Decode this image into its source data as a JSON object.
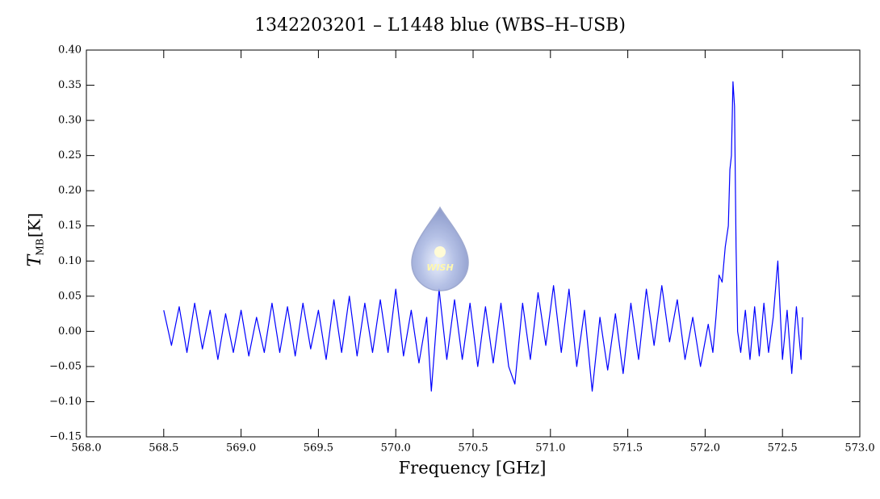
{
  "chart_data": {
    "type": "line",
    "title": "1342203201 – L1448 blue (WBS–H–USB)",
    "x_label": "Frequency [GHz]",
    "y_label": "T",
    "y_label_sub": "MB",
    "y_label_unit": "[K]",
    "watermark": "WISH",
    "color": "#0000ff",
    "x": [
      568.5,
      568.55,
      568.6,
      568.65,
      568.7,
      568.75,
      568.8,
      568.85,
      568.9,
      568.95,
      569.0,
      569.05,
      569.1,
      569.15,
      569.2,
      569.25,
      569.3,
      569.35,
      569.4,
      569.45,
      569.5,
      569.55,
      569.6,
      569.65,
      569.7,
      569.75,
      569.8,
      569.85,
      569.9,
      569.95,
      570.0,
      570.05,
      570.1,
      570.15,
      570.2,
      570.23,
      570.28,
      570.33,
      570.38,
      570.43,
      570.48,
      570.53,
      570.58,
      570.63,
      570.68,
      570.73,
      570.77,
      570.82,
      570.87,
      570.92,
      570.97,
      571.02,
      571.07,
      571.12,
      571.17,
      571.22,
      571.27,
      571.32,
      571.37,
      571.42,
      571.47,
      571.52,
      571.57,
      571.62,
      571.67,
      571.72,
      571.77,
      571.82,
      571.87,
      571.92,
      571.97,
      572.02,
      572.05,
      572.07,
      572.09,
      572.11,
      572.13,
      572.15,
      572.16,
      572.17,
      572.18,
      572.19,
      572.2,
      572.21,
      572.23,
      572.26,
      572.29,
      572.32,
      572.35,
      572.38,
      572.41,
      572.44,
      572.47,
      572.5,
      572.53,
      572.56,
      572.59,
      572.62,
      572.63
    ],
    "values": [
      0.03,
      -0.02,
      0.035,
      -0.03,
      0.04,
      -0.025,
      0.03,
      -0.04,
      0.025,
      -0.03,
      0.03,
      -0.035,
      0.02,
      -0.03,
      0.04,
      -0.03,
      0.035,
      -0.035,
      0.04,
      -0.025,
      0.03,
      -0.04,
      0.045,
      -0.03,
      0.05,
      -0.035,
      0.04,
      -0.03,
      0.045,
      -0.03,
      0.06,
      -0.035,
      0.03,
      -0.045,
      0.02,
      -0.085,
      0.06,
      -0.04,
      0.045,
      -0.04,
      0.04,
      -0.05,
      0.035,
      -0.045,
      0.04,
      -0.05,
      -0.075,
      0.04,
      -0.04,
      0.055,
      -0.02,
      0.065,
      -0.03,
      0.06,
      -0.05,
      0.03,
      -0.085,
      0.02,
      -0.055,
      0.025,
      -0.06,
      0.04,
      -0.04,
      0.06,
      -0.02,
      0.065,
      -0.015,
      0.045,
      -0.04,
      0.02,
      -0.05,
      0.01,
      -0.03,
      0.02,
      0.08,
      0.07,
      0.12,
      0.15,
      0.23,
      0.25,
      0.355,
      0.32,
      0.12,
      0.0,
      -0.03,
      0.03,
      -0.04,
      0.035,
      -0.035,
      0.04,
      -0.03,
      0.02,
      0.1,
      -0.04,
      0.03,
      -0.06,
      0.035,
      -0.04,
      0.02
    ],
    "xlim": [
      568.0,
      573.0
    ],
    "xticks": [
      {
        "value": 568,
        "label": "568.0"
      },
      568.5,
      {
        "value": 569,
        "label": "569.0"
      },
      569.5,
      {
        "value": 570,
        "label": "570.0"
      },
      570.5,
      {
        "value": 571,
        "label": "571.0"
      },
      571.5,
      {
        "value": 572,
        "label": "572.0"
      },
      572.5,
      {
        "value": 573,
        "label": "573.0"
      }
    ],
    "ylim": [
      -0.15,
      0.4
    ],
    "yticks": [
      {
        "value": -0.15,
        "label": "−0.15"
      },
      {
        "value": -0.1,
        "label": "−0.10"
      },
      {
        "value": -0.05,
        "label": "−0.05"
      },
      {
        "value": 0,
        "label": "0.00"
      },
      {
        "value": 0.05,
        "label": "0.05"
      },
      {
        "value": 0.1,
        "label": "0.10"
      },
      {
        "value": 0.15,
        "label": "0.15"
      },
      {
        "value": 0.2,
        "label": "0.20"
      },
      {
        "value": 0.25,
        "label": "0.25"
      },
      {
        "value": 0.3,
        "label": "0.30"
      },
      {
        "value": 0.35,
        "label": "0.35"
      },
      {
        "value": 0.4,
        "label": "0.40"
      }
    ],
    "grid": false
  }
}
